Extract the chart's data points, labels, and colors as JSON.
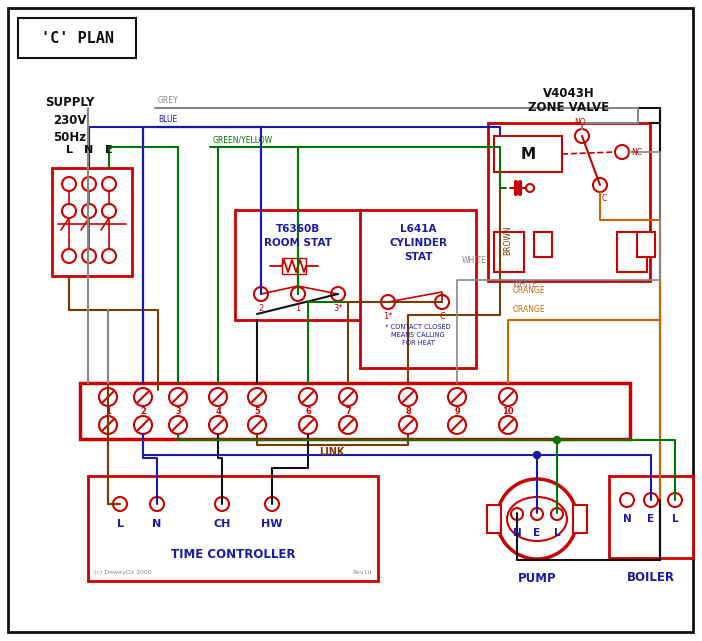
{
  "bg": "#ffffff",
  "red": "#cc0000",
  "blue": "#1a1aaa",
  "green": "#007700",
  "brown": "#7B3B00",
  "grey": "#888888",
  "orange": "#cc6600",
  "black": "#111111",
  "title": "'C' PLAN",
  "zone_label1": "V4043H",
  "zone_label2": "ZONE VALVE",
  "supply_label": "SUPPLY\n230V\n50Hz",
  "lne": "L   N   E",
  "room_stat1": "T6360B",
  "room_stat2": "ROOM STAT",
  "cyl_stat1": "L641A",
  "cyl_stat2": "CYLINDER",
  "cyl_stat3": "STAT",
  "cyl_note": "* CONTACT CLOSED\nMEANS CALLING\nFOR HEAT",
  "time_ctrl": "TIME CONTROLLER",
  "pump": "PUMP",
  "boiler": "BOILER",
  "link": "LINK",
  "grey_lbl": "GREY",
  "blue_lbl": "BLUE",
  "gy_lbl": "GREEN/YELLOW",
  "brown_lbl": "BROWN",
  "white_lbl": "WHITE",
  "orange_lbl": "ORANGE",
  "fn_l": "(c) DeweyOz 2000",
  "fn_r": "Rev1d"
}
